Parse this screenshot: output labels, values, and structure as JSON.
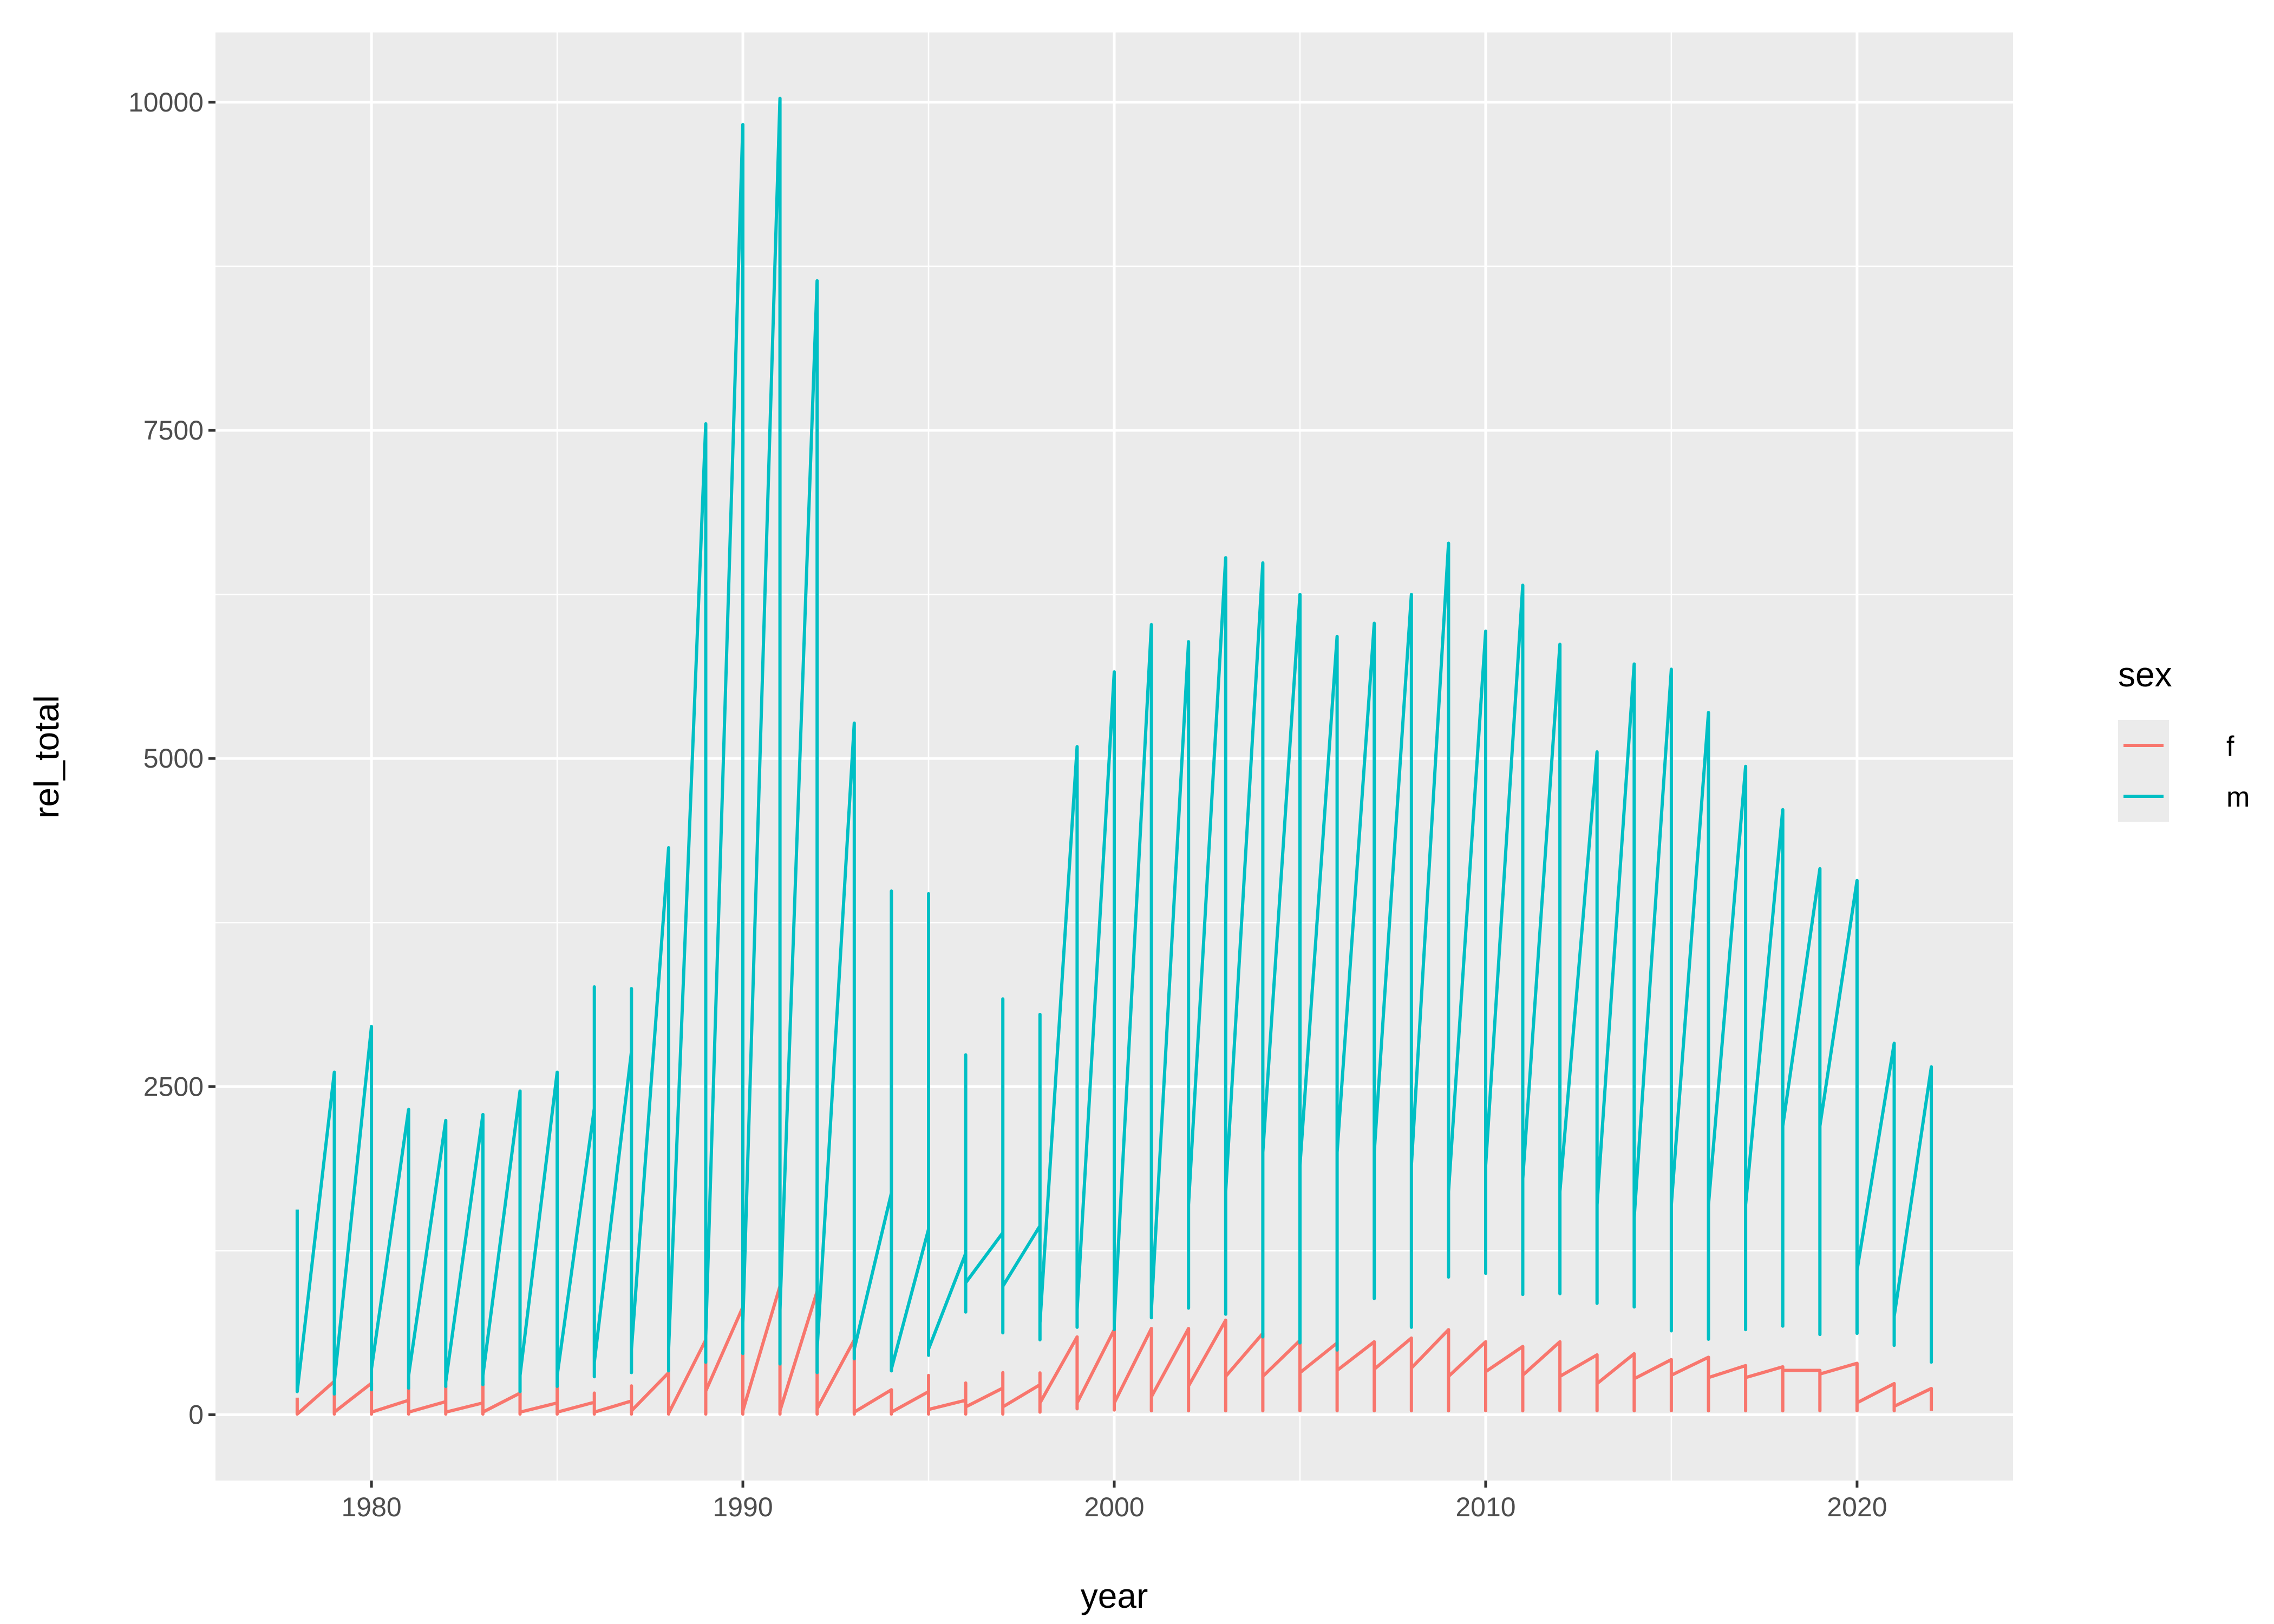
{
  "chart_data": {
    "type": "line",
    "xlabel": "year",
    "ylabel": "rel_total",
    "xlim": [
      1978,
      2022
    ],
    "ylim": [
      0,
      10030
    ],
    "x_ticks": [
      1980,
      1990,
      2000,
      2010,
      2020
    ],
    "y_ticks": [
      0,
      2500,
      5000,
      7500,
      10000
    ],
    "x_tick_labels": [
      "1980",
      "1990",
      "2000",
      "2010",
      "2020"
    ],
    "y_tick_labels": [
      "0",
      "2500",
      "5000",
      "7500",
      "10000"
    ],
    "grid": true,
    "legend": {
      "title": "sex",
      "placement": "right",
      "entries": [
        "f",
        "m"
      ]
    },
    "years": [
      1978,
      1979,
      1980,
      1981,
      1982,
      1983,
      1984,
      1985,
      1986,
      1987,
      1988,
      1989,
      1990,
      1991,
      1992,
      1993,
      1994,
      1995,
      1996,
      1997,
      1998,
      1999,
      2000,
      2001,
      2002,
      2003,
      2004,
      2005,
      2006,
      2007,
      2008,
      2009,
      2010,
      2011,
      2012,
      2013,
      2014,
      2015,
      2016,
      2017,
      2018,
      2019,
      2020,
      2021,
      2022
    ],
    "series": [
      {
        "name": "f",
        "color": "#F8766D",
        "values_per_year": [
          [
            130,
            130,
            5,
            5
          ],
          [
            255,
            255,
            5,
            20
          ],
          [
            240,
            240,
            5,
            20
          ],
          [
            110,
            200,
            5,
            20
          ],
          [
            100,
            215,
            5,
            20
          ],
          [
            90,
            230,
            5,
            20
          ],
          [
            165,
            165,
            5,
            20
          ],
          [
            90,
            210,
            5,
            20
          ],
          [
            95,
            165,
            5,
            20
          ],
          [
            105,
            220,
            5,
            30
          ],
          [
            320,
            320,
            5,
            10
          ],
          [
            570,
            570,
            5,
            180
          ],
          [
            820,
            820,
            5,
            30
          ],
          [
            980,
            980,
            5,
            30
          ],
          [
            940,
            940,
            5,
            45
          ],
          [
            570,
            570,
            5,
            20
          ],
          [
            190,
            190,
            5,
            20
          ],
          [
            176,
            300,
            5,
            40
          ],
          [
            110,
            242,
            5,
            60
          ],
          [
            203,
            321,
            5,
            60
          ],
          [
            229,
            319,
            20,
            90
          ],
          [
            593,
            593,
            45,
            90
          ],
          [
            648,
            648,
            36,
            90
          ],
          [
            657,
            657,
            30,
            137
          ],
          [
            657,
            657,
            30,
            219
          ],
          [
            720,
            720,
            30,
            292
          ],
          [
            620,
            620,
            30,
            292
          ],
          [
            566,
            566,
            30,
            320
          ],
          [
            547,
            547,
            30,
            338
          ],
          [
            556,
            556,
            30,
            347
          ],
          [
            584,
            584,
            30,
            356
          ],
          [
            648,
            648,
            30,
            292
          ],
          [
            556,
            556,
            30,
            328
          ],
          [
            520,
            520,
            30,
            301
          ],
          [
            556,
            556,
            30,
            292
          ],
          [
            456,
            456,
            30,
            237
          ],
          [
            465,
            465,
            30,
            274
          ],
          [
            420,
            420,
            30,
            301
          ],
          [
            438,
            438,
            30,
            283
          ],
          [
            374,
            374,
            30,
            283
          ],
          [
            365,
            365,
            30,
            338
          ],
          [
            338,
            338,
            30,
            310
          ],
          [
            392,
            392,
            30,
            91
          ],
          [
            237,
            237,
            30,
            64
          ],
          [
            200,
            200,
            30,
            30
          ]
        ]
      },
      {
        "name": "m",
        "color": "#00BFC4",
        "values_per_year": [
          [
            1563,
            1563,
            176,
            176
          ],
          [
            2610,
            2610,
            158,
            250
          ],
          [
            2958,
            2958,
            190,
            350
          ],
          [
            2326,
            2326,
            203,
            300
          ],
          [
            2242,
            2242,
            216,
            250
          ],
          [
            2287,
            2287,
            229,
            300
          ],
          [
            2466,
            2466,
            176,
            300
          ],
          [
            2610,
            2610,
            216,
            300
          ],
          [
            2334,
            3260,
            289,
            400
          ],
          [
            2768,
            3247,
            321,
            500
          ],
          [
            4320,
            4320,
            334,
            500
          ],
          [
            7550,
            7550,
            400,
            600
          ],
          [
            9830,
            9830,
            466,
            700
          ],
          [
            10030,
            10030,
            387,
            800
          ],
          [
            8640,
            8640,
            321,
            500
          ],
          [
            5270,
            5270,
            426,
            500
          ],
          [
            1689,
            3990,
            334,
            350
          ],
          [
            1413,
            3970,
            453,
            500
          ],
          [
            1229,
            2742,
            782,
            1005
          ],
          [
            1387,
            3168,
            624,
            979
          ],
          [
            1439,
            3050,
            571,
            700
          ],
          [
            5090,
            5090,
            666,
            800
          ],
          [
            5660,
            5660,
            648,
            700
          ],
          [
            6020,
            6020,
            739,
            800
          ],
          [
            5890,
            5890,
            812,
            1600
          ],
          [
            6530,
            6530,
            766,
            1700
          ],
          [
            6490,
            6490,
            593,
            2000
          ],
          [
            6250,
            6250,
            547,
            1900
          ],
          [
            5930,
            5930,
            493,
            2000
          ],
          [
            6030,
            6030,
            885,
            2000
          ],
          [
            6250,
            6250,
            666,
            1900
          ],
          [
            6640,
            6640,
            1049,
            1700
          ],
          [
            5970,
            5970,
            1077,
            1900
          ],
          [
            6320,
            6320,
            916,
            1800
          ],
          [
            5870,
            5870,
            922,
            1700
          ],
          [
            5050,
            5050,
            849,
            1600
          ],
          [
            5720,
            5720,
            821,
            1500
          ],
          [
            5680,
            5680,
            639,
            1600
          ],
          [
            5350,
            5350,
            575,
            1600
          ],
          [
            4940,
            4940,
            648,
            1600
          ],
          [
            4610,
            4610,
            675,
            2200
          ],
          [
            4160,
            4160,
            611,
            2200
          ],
          [
            4070,
            4070,
            620,
            1100
          ],
          [
            2830,
            2830,
            529,
            750
          ],
          [
            2650,
            2650,
            401,
            1600
          ]
        ]
      }
    ]
  }
}
